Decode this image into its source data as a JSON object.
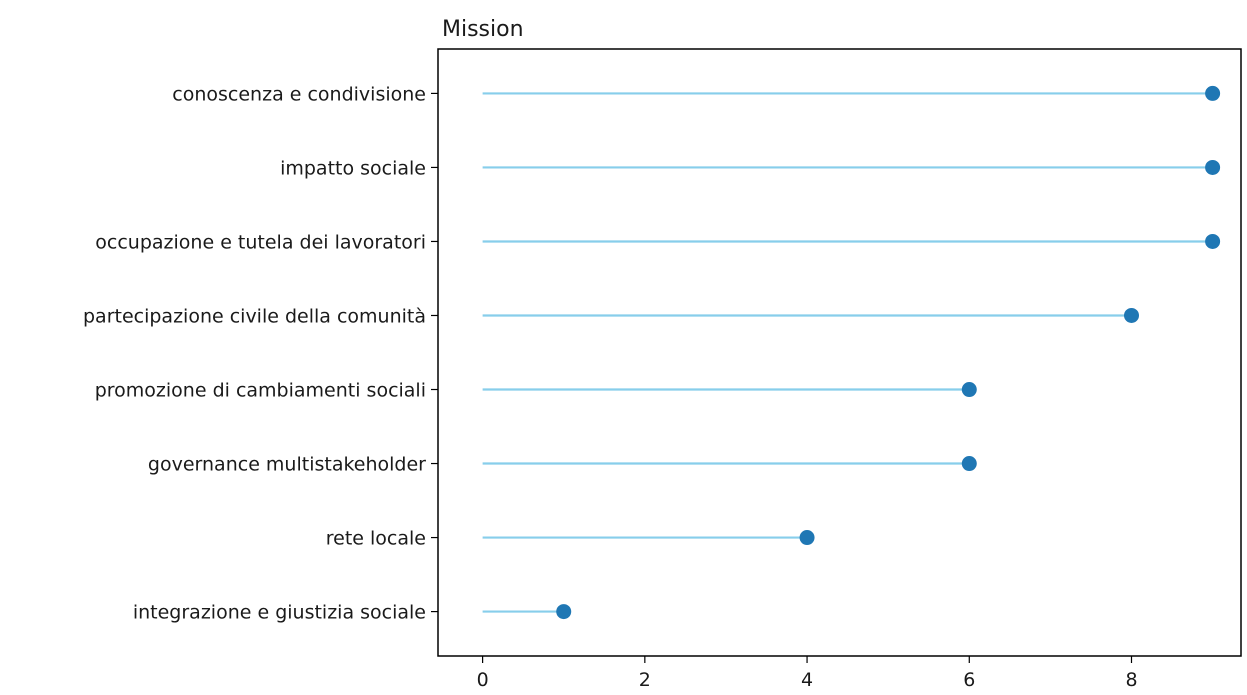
{
  "chart_data": {
    "type": "lollipop",
    "title": "Mission",
    "xlabel": "",
    "ylabel": "",
    "xlim": [
      -0.55,
      9.35
    ],
    "xticks": [
      0,
      2,
      4,
      6,
      8
    ],
    "categories": [
      "integrazione e giustizia sociale",
      "rete locale",
      "governance multistakeholder",
      "promozione di cambiamenti sociali",
      "partecipazione civile della comunità",
      "occupazione e tutela dei lavoratori",
      "impatto sociale",
      "conoscenza e condivisione"
    ],
    "values": [
      1,
      4,
      6,
      6,
      8,
      9,
      9,
      9
    ],
    "stem_color": "#87ceeb",
    "marker_color": "#1f77b4",
    "grid": false
  }
}
